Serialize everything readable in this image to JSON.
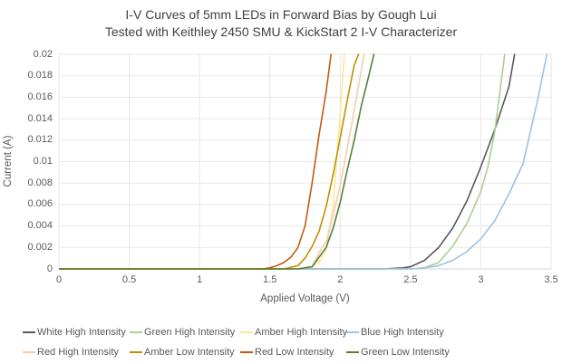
{
  "title": {
    "line1": "I-V Curves of 5mm LEDs in Forward Bias by Gough Lui",
    "line2": "Tested with Keithley 2450 SMU & KickStart 2 I-V Characterizer"
  },
  "chart_data": {
    "type": "line",
    "title": "I-V Curves of 5mm LEDs in Forward Bias by Gough Lui Tested with Keithley 2450 SMU & KickStart 2 I-V Characterizer",
    "xlabel": "Applied Voltage (V)",
    "ylabel": "Current (A)",
    "xlim": [
      0,
      3.5
    ],
    "ylim": [
      0,
      0.02
    ],
    "xticks": [
      "0",
      "0.5",
      "1",
      "1.5",
      "2",
      "2.5",
      "3",
      "3.5"
    ],
    "yticks": [
      "0",
      "0.002",
      "0.004",
      "0.006",
      "0.008",
      "0.01",
      "0.012",
      "0.014",
      "0.016",
      "0.018",
      "0.02"
    ],
    "grid": true,
    "legend_position": "bottom",
    "colors": {
      "grid": "#e7e7e7",
      "axis_line": "#d6d6d6",
      "tick_text": "#595959",
      "title_text": "#404040"
    },
    "series": [
      {
        "name": "White High Intensity",
        "color": "#595959",
        "points": [
          [
            0,
            0
          ],
          [
            2.3,
            0
          ],
          [
            2.45,
            0.0001
          ],
          [
            2.5,
            0.0002
          ],
          [
            2.6,
            0.0008
          ],
          [
            2.7,
            0.002
          ],
          [
            2.8,
            0.0038
          ],
          [
            2.9,
            0.0063
          ],
          [
            3.0,
            0.0095
          ],
          [
            3.1,
            0.013
          ],
          [
            3.2,
            0.017
          ],
          [
            3.24,
            0.02
          ]
        ]
      },
      {
        "name": "Green High Intensity",
        "color": "#a9d18e",
        "points": [
          [
            0,
            0
          ],
          [
            2.5,
            0
          ],
          [
            2.6,
            0.0001
          ],
          [
            2.7,
            0.0006
          ],
          [
            2.8,
            0.0021
          ],
          [
            2.9,
            0.0042
          ],
          [
            3.0,
            0.0072
          ],
          [
            3.05,
            0.0095
          ],
          [
            3.1,
            0.0128
          ],
          [
            3.17,
            0.02
          ]
        ]
      },
      {
        "name": "Amber High Intensity",
        "color": "#ffe699",
        "points": [
          [
            0,
            0
          ],
          [
            1.7,
            0
          ],
          [
            1.8,
            0.0002
          ],
          [
            1.85,
            0.0006
          ],
          [
            1.9,
            0.0018
          ],
          [
            1.95,
            0.0058
          ],
          [
            2.0,
            0.0145
          ],
          [
            2.03,
            0.02
          ]
        ]
      },
      {
        "name": "Blue High Intensity",
        "color": "#9dc3e6",
        "points": [
          [
            0,
            0
          ],
          [
            2.5,
            0
          ],
          [
            2.6,
            0.0001
          ],
          [
            2.7,
            0.0003
          ],
          [
            2.8,
            0.0008
          ],
          [
            2.9,
            0.0016
          ],
          [
            3.0,
            0.0028
          ],
          [
            3.1,
            0.0045
          ],
          [
            3.2,
            0.007
          ],
          [
            3.3,
            0.0098
          ],
          [
            3.4,
            0.0155
          ],
          [
            3.47,
            0.02
          ]
        ]
      },
      {
        "name": "Red High Intensity",
        "color": "#f8cbad",
        "points": [
          [
            0,
            0
          ],
          [
            1.7,
            0
          ],
          [
            1.8,
            0.0002
          ],
          [
            1.87,
            0.002
          ],
          [
            1.9,
            0.0025
          ],
          [
            1.95,
            0.005
          ],
          [
            2.0,
            0.0078
          ],
          [
            2.05,
            0.0112
          ],
          [
            2.1,
            0.0148
          ],
          [
            2.17,
            0.02
          ]
        ]
      },
      {
        "name": "Amber Low Intensity",
        "color": "#bf9000",
        "points": [
          [
            0,
            0
          ],
          [
            1.6,
            0
          ],
          [
            1.7,
            0.0003
          ],
          [
            1.75,
            0.001
          ],
          [
            1.8,
            0.0021
          ],
          [
            1.85,
            0.0035
          ],
          [
            1.9,
            0.0058
          ],
          [
            1.95,
            0.0088
          ],
          [
            2.0,
            0.0122
          ],
          [
            2.05,
            0.0157
          ],
          [
            2.1,
            0.019
          ],
          [
            2.13,
            0.02
          ]
        ]
      },
      {
        "name": "Red Low Intensity",
        "color": "#c55a11",
        "points": [
          [
            0,
            0
          ],
          [
            1.45,
            0
          ],
          [
            1.5,
            0.0001
          ],
          [
            1.55,
            0.0003
          ],
          [
            1.6,
            0.0006
          ],
          [
            1.65,
            0.0011
          ],
          [
            1.7,
            0.002
          ],
          [
            1.75,
            0.004
          ],
          [
            1.8,
            0.008
          ],
          [
            1.85,
            0.0125
          ],
          [
            1.9,
            0.0165
          ],
          [
            1.935,
            0.02
          ]
        ]
      },
      {
        "name": "Green Low Intensity",
        "color": "#538135",
        "points": [
          [
            0,
            0
          ],
          [
            1.7,
            0
          ],
          [
            1.8,
            0.0002
          ],
          [
            1.9,
            0.002
          ],
          [
            1.95,
            0.0038
          ],
          [
            2.0,
            0.0062
          ],
          [
            2.05,
            0.0092
          ],
          [
            2.1,
            0.012
          ],
          [
            2.15,
            0.0152
          ],
          [
            2.2,
            0.0178
          ],
          [
            2.24,
            0.02
          ]
        ]
      }
    ]
  }
}
